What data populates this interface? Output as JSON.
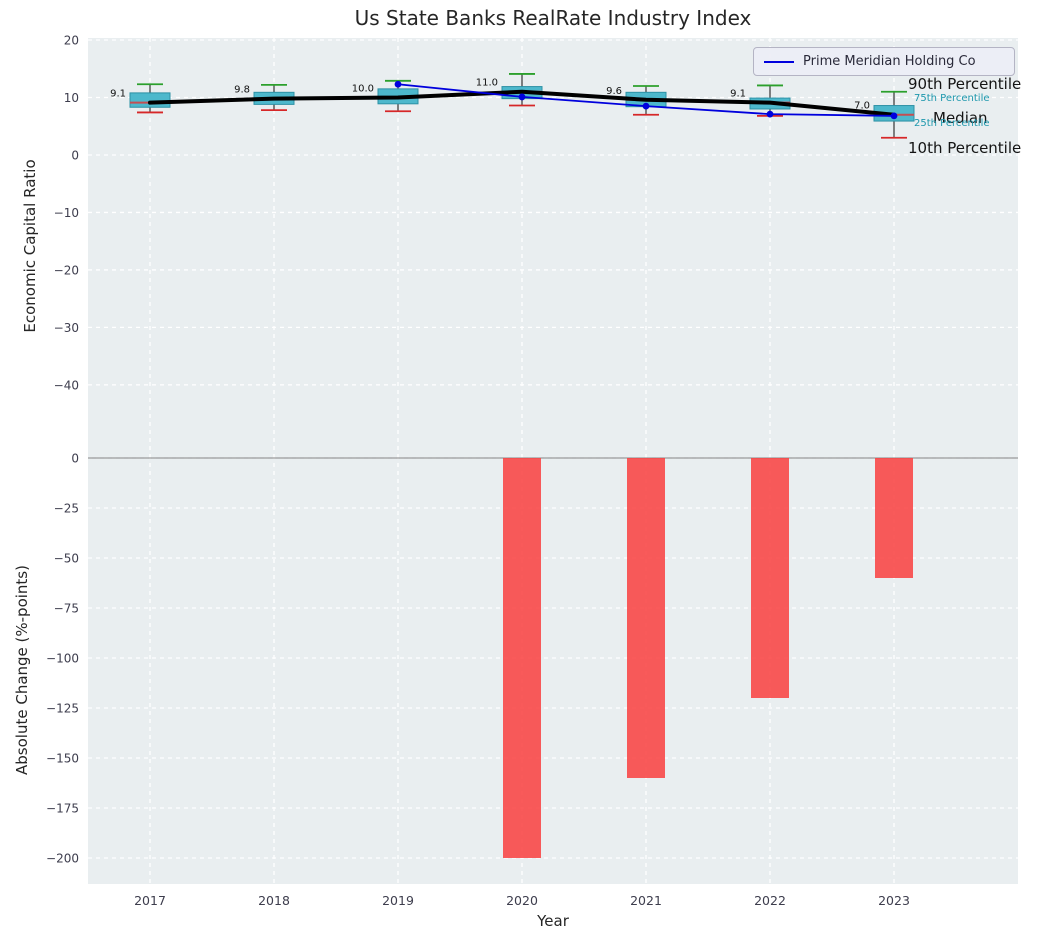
{
  "title": "Us State Banks RealRate Industry Index",
  "xlabel": "Year",
  "legend": {
    "series_label": "Prime Meridian Holding Co"
  },
  "percentile_annotations": {
    "p90": "90th Percentile",
    "p75": "75th Percentile",
    "median": "Median",
    "p25": "25th Percentile",
    "p10": "10th Percentile"
  },
  "chart_data": [
    {
      "type": "boxplot",
      "title": "Us State Banks RealRate Industry Index",
      "ylabel": "Economic Capital Ratio",
      "xlabel": "Year",
      "categories": [
        2017,
        2018,
        2019,
        2020,
        2021,
        2022,
        2023
      ],
      "xtick_labels": [
        "2017",
        "2018",
        "2019",
        "2020",
        "2021",
        "2022",
        "2023"
      ],
      "xlim": [
        2016.5,
        2024.0
      ],
      "ylim": [
        -52.2,
        20.35
      ],
      "yticks": [
        20,
        10,
        0,
        -10,
        -20,
        -30,
        -40
      ],
      "ytick_labels": [
        "20",
        "10",
        "0",
        "−10",
        "−20",
        "−30",
        "−40"
      ],
      "grid": true,
      "legend_position": "upper right",
      "boxes": [
        {
          "year": 2017,
          "p10": 7.4,
          "p25": 8.3,
          "median": 9.1,
          "p75": 10.8,
          "p90": 12.3,
          "label": "9.1"
        },
        {
          "year": 2018,
          "p10": 7.8,
          "p25": 8.8,
          "median": 9.8,
          "p75": 10.9,
          "p90": 12.2,
          "label": "9.8"
        },
        {
          "year": 2019,
          "p10": 7.6,
          "p25": 8.9,
          "median": 10.0,
          "p75": 11.5,
          "p90": 12.9,
          "label": "10.0"
        },
        {
          "year": 2020,
          "p10": 8.6,
          "p25": 9.8,
          "median": 11.0,
          "p75": 11.9,
          "p90": 14.1,
          "label": "11.0"
        },
        {
          "year": 2021,
          "p10": 7.0,
          "p25": 8.4,
          "median": 9.6,
          "p75": 10.9,
          "p90": 12.0,
          "label": "9.6"
        },
        {
          "year": 2022,
          "p10": 6.8,
          "p25": 8.0,
          "median": 9.1,
          "p75": 9.9,
          "p90": 12.1,
          "label": "9.1"
        },
        {
          "year": 2023,
          "p10": 3.0,
          "p25": 5.9,
          "median": 7.0,
          "p75": 8.6,
          "p90": 11.0,
          "label": "7.0"
        }
      ],
      "median_trend": {
        "color": "#000000",
        "values": [
          9.1,
          9.8,
          10.0,
          11.0,
          9.6,
          9.1,
          7.0
        ]
      },
      "company_series": {
        "name": "Prime Meridian Holding Co",
        "color": "#0000dd",
        "x": [
          2019,
          2020,
          2021,
          2022,
          2023
        ],
        "y": [
          12.3,
          10.1,
          8.5,
          7.1,
          6.8
        ]
      },
      "colors": {
        "box_fill": "#4db8cc",
        "box_edge": "#2d91a5",
        "cap_90": "#2ca02c",
        "cap_10": "#d62728",
        "median_in_box": "#c44e52",
        "whisker": "#333333",
        "background": "#e9eef0"
      }
    },
    {
      "type": "bar",
      "ylabel": "Absolute Change (%-points)",
      "categories": [
        2017,
        2018,
        2019,
        2020,
        2021,
        2022,
        2023
      ],
      "values": [
        0,
        0,
        0,
        -200,
        -160,
        -120,
        -60
      ],
      "ylim": [
        -213,
        1.5
      ],
      "yticks": [
        0,
        -25,
        -50,
        -75,
        -100,
        -125,
        -150,
        -175,
        -200
      ],
      "ytick_labels": [
        "0",
        "−25",
        "−50",
        "−75",
        "−100",
        "−125",
        "−150",
        "−175",
        "−200"
      ],
      "bar_color": "#f93e3e",
      "zero_line_color": "#999999",
      "grid": true
    }
  ]
}
